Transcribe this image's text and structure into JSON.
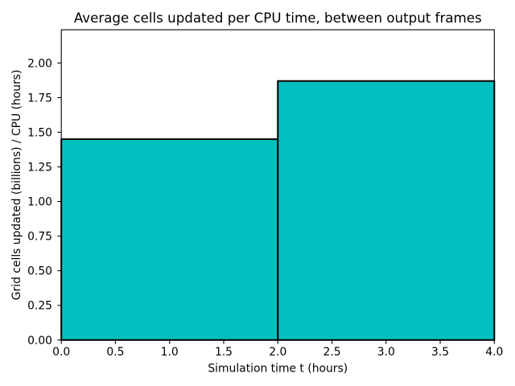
{
  "chart_data": {
    "type": "bar",
    "title": "Average cells updated per CPU time, between output frames",
    "xlabel": "Simulation time t (hours)",
    "ylabel": "Grid cells updated (billions) / CPU (hours)",
    "bars": [
      {
        "x_start": 0,
        "x_end": 2,
        "value": 1.45
      },
      {
        "x_start": 2,
        "x_end": 4,
        "value": 1.87
      }
    ],
    "xlim": [
      0,
      4
    ],
    "ylim": [
      0,
      2.24
    ],
    "xtick_values": [
      0.0,
      0.5,
      1.0,
      1.5,
      2.0,
      2.5,
      3.0,
      3.5,
      4.0
    ],
    "xtick_labels": [
      "0.0",
      "0.5",
      "1.0",
      "1.5",
      "2.0",
      "2.5",
      "3.0",
      "3.5",
      "4.0"
    ],
    "ytick_values": [
      0.0,
      0.25,
      0.5,
      0.75,
      1.0,
      1.25,
      1.5,
      1.75,
      2.0
    ],
    "ytick_labels": [
      "0.00",
      "0.25",
      "0.50",
      "0.75",
      "1.00",
      "1.25",
      "1.50",
      "1.75",
      "2.00"
    ],
    "bar_fill_color": "#00bfbf",
    "bar_edge_color": "#000000",
    "axis_color": "#000000",
    "background_color": "#ffffff",
    "grid": false,
    "legend_position": "none"
  }
}
